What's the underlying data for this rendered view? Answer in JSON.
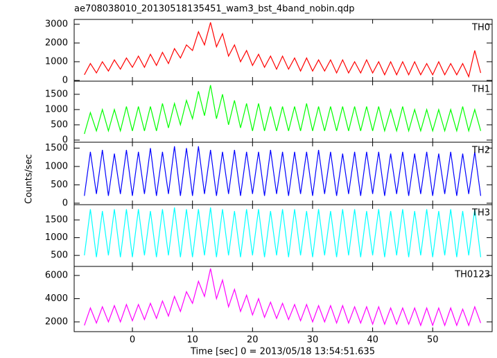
{
  "chart_data": {
    "type": "line",
    "title": "ae708038010_20130518135451_wam3_bst_4band_nobin.qdp",
    "xlabel": "Time [sec] 0 = 2013/05/18 13:54:51.635",
    "ylabel": "Counts/sec",
    "xlim": [
      -9.7,
      59.9
    ],
    "xticks": [
      0,
      10,
      20,
      30,
      40,
      50
    ],
    "x": [
      -8,
      -7,
      -6,
      -5,
      -4,
      -3,
      -2,
      -1,
      0,
      1,
      2,
      3,
      4,
      5,
      6,
      7,
      8,
      9,
      10,
      11,
      12,
      13,
      14,
      15,
      16,
      17,
      18,
      19,
      20,
      21,
      22,
      23,
      24,
      25,
      26,
      27,
      28,
      29,
      30,
      31,
      32,
      33,
      34,
      35,
      36,
      37,
      38,
      39,
      40,
      41,
      42,
      43,
      44,
      45,
      46,
      47,
      48,
      49,
      50,
      51,
      52,
      53,
      54,
      55,
      56,
      57,
      58
    ],
    "series": [
      {
        "name": "TH0",
        "color": "#ff0000",
        "ylim": [
          -40,
          3260
        ],
        "yticks": [
          0,
          1000,
          2000,
          3000
        ],
        "values": [
          300,
          900,
          400,
          1000,
          500,
          1100,
          600,
          1200,
          700,
          1300,
          700,
          1400,
          800,
          1500,
          900,
          1700,
          1200,
          1900,
          1600,
          2600,
          1900,
          3100,
          1800,
          2500,
          1300,
          1900,
          1000,
          1600,
          800,
          1400,
          700,
          1300,
          600,
          1300,
          600,
          1200,
          500,
          1200,
          500,
          1100,
          500,
          1100,
          400,
          1100,
          400,
          1000,
          400,
          1100,
          400,
          1000,
          300,
          1000,
          300,
          1000,
          300,
          1000,
          300,
          900,
          300,
          1000,
          300,
          900,
          300,
          900,
          200,
          1600,
          400
        ]
      },
      {
        "name": "TH1",
        "color": "#00ff00",
        "ylim": [
          -70,
          1930
        ],
        "yticks": [
          0,
          500,
          1000,
          1500
        ],
        "values": [
          200,
          900,
          300,
          1000,
          300,
          1000,
          300,
          1100,
          300,
          1100,
          300,
          1100,
          300,
          1200,
          400,
          1200,
          500,
          1300,
          700,
          1600,
          800,
          1800,
          700,
          1500,
          500,
          1300,
          400,
          1200,
          300,
          1200,
          300,
          1100,
          300,
          1100,
          300,
          1100,
          300,
          1200,
          300,
          1100,
          300,
          1100,
          300,
          1100,
          300,
          1100,
          300,
          1100,
          300,
          1100,
          300,
          1000,
          300,
          1100,
          300,
          1000,
          300,
          1000,
          300,
          1000,
          300,
          1000,
          300,
          1100,
          300,
          1000,
          300
        ]
      },
      {
        "name": "TH2",
        "color": "#0000ff",
        "ylim": [
          -40,
          1660
        ],
        "yticks": [
          0,
          500,
          1000,
          1500
        ],
        "values": [
          200,
          1400,
          250,
          1450,
          200,
          1350,
          250,
          1450,
          200,
          1400,
          250,
          1500,
          200,
          1400,
          250,
          1550,
          200,
          1500,
          200,
          1550,
          250,
          1450,
          200,
          1400,
          250,
          1450,
          200,
          1400,
          250,
          1400,
          200,
          1450,
          250,
          1400,
          200,
          1400,
          250,
          1400,
          200,
          1450,
          250,
          1400,
          200,
          1350,
          250,
          1400,
          200,
          1400,
          250,
          1400,
          200,
          1350,
          250,
          1400,
          200,
          1350,
          250,
          1400,
          200,
          1350,
          250,
          1400,
          200,
          1350,
          250,
          1400,
          200
        ]
      },
      {
        "name": "TH3",
        "color": "#00ffff",
        "ylim": [
          190,
          1930
        ],
        "yticks": [
          500,
          1000,
          1500
        ],
        "values": [
          500,
          1800,
          450,
          1750,
          500,
          1800,
          450,
          1800,
          450,
          1800,
          500,
          1750,
          450,
          1800,
          500,
          1850,
          450,
          1800,
          450,
          1800,
          500,
          1850,
          450,
          1800,
          500,
          1750,
          450,
          1800,
          500,
          1800,
          450,
          1750,
          500,
          1800,
          450,
          1800,
          500,
          1750,
          450,
          1800,
          500,
          1750,
          450,
          1800,
          500,
          1800,
          450,
          1750,
          500,
          1800,
          450,
          1750,
          500,
          1800,
          450,
          1750,
          500,
          1800,
          450,
          1750,
          500,
          1800,
          450,
          1750,
          500,
          1800,
          450
        ]
      },
      {
        "name": "TH0123",
        "color": "#ff00ff",
        "ylim": [
          1160,
          6780
        ],
        "yticks": [
          2000,
          4000,
          6000
        ],
        "values": [
          1700,
          3200,
          1900,
          3300,
          2000,
          3400,
          2000,
          3500,
          2100,
          3500,
          2200,
          3600,
          2300,
          3800,
          2500,
          4200,
          2900,
          4600,
          3600,
          5500,
          4200,
          6600,
          4000,
          5600,
          3300,
          4800,
          2900,
          4300,
          2600,
          4000,
          2400,
          3700,
          2300,
          3600,
          2200,
          3500,
          2100,
          3500,
          2000,
          3400,
          2000,
          3400,
          1900,
          3400,
          1900,
          3300,
          1900,
          3300,
          1800,
          3300,
          1800,
          3200,
          1800,
          3200,
          1800,
          3200,
          1700,
          3200,
          1700,
          3200,
          1700,
          3200,
          1700,
          3100,
          1700,
          3300,
          1900
        ]
      }
    ]
  }
}
